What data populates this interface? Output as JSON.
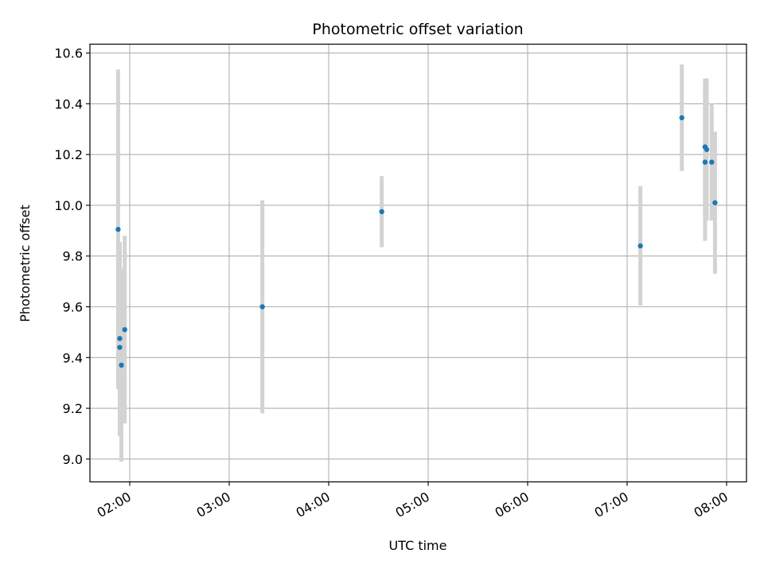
{
  "chart_data": {
    "type": "scatter",
    "title": "Photometric offset variation",
    "xlabel": "UTC time",
    "ylabel": "Photometric offset",
    "x_tick_labels": [
      "02:00",
      "03:00",
      "04:00",
      "05:00",
      "06:00",
      "07:00",
      "08:00"
    ],
    "y_tick_labels": [
      "9.0",
      "9.2",
      "9.4",
      "9.6",
      "9.8",
      "10.0",
      "10.2",
      "10.4",
      "10.6"
    ],
    "grid": true,
    "xlim": [
      "01:36",
      "08:12"
    ],
    "ylim": [
      8.91,
      10.635
    ],
    "colors": {
      "points": "#1f77b4",
      "errorbars": "#d3d3d3",
      "grid": "#b0b0b0"
    },
    "series": [
      {
        "points": [
          {
            "x": "01:53",
            "y": 9.905,
            "err": 0.63
          },
          {
            "x": "01:54",
            "y": 9.475,
            "err": 0.38
          },
          {
            "x": "01:54",
            "y": 9.44,
            "err": 0.35
          },
          {
            "x": "01:55",
            "y": 9.37,
            "err": 0.38
          },
          {
            "x": "01:57",
            "y": 9.51,
            "err": 0.37
          },
          {
            "x": "03:20",
            "y": 9.6,
            "err": 0.42
          },
          {
            "x": "04:32",
            "y": 9.975,
            "err": 0.14
          },
          {
            "x": "07:08",
            "y": 9.84,
            "err": 0.235
          },
          {
            "x": "07:33",
            "y": 10.345,
            "err": 0.21
          },
          {
            "x": "07:47",
            "y": 10.17,
            "err": 0.31
          },
          {
            "x": "07:47",
            "y": 10.23,
            "err": 0.27
          },
          {
            "x": "07:48",
            "y": 10.22,
            "err": 0.28
          },
          {
            "x": "07:51",
            "y": 10.17,
            "err": 0.23
          },
          {
            "x": "07:53",
            "y": 10.01,
            "err": 0.28
          }
        ]
      }
    ]
  }
}
